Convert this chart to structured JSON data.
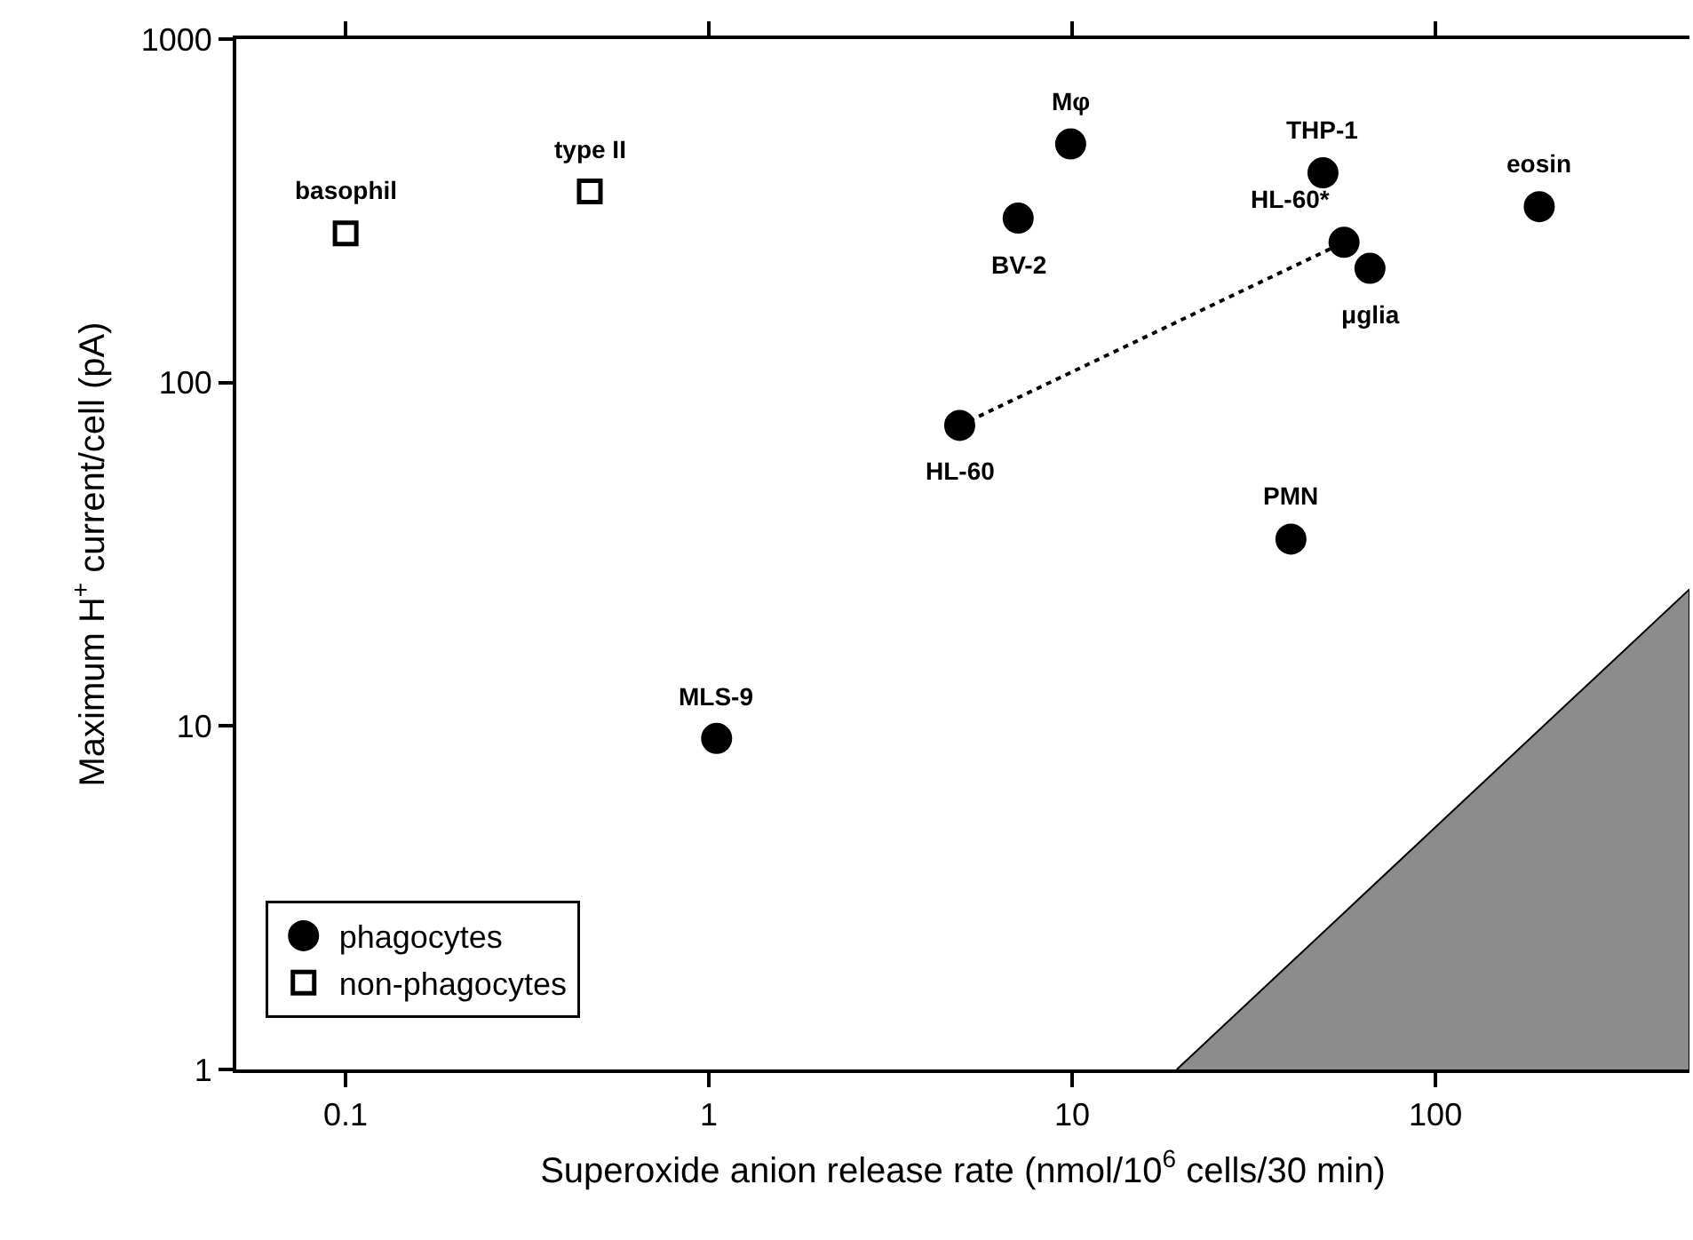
{
  "chart_data": {
    "type": "scatter",
    "xlabel": "Superoxide anion release rate (nmol/10$^{6}$ cells/30 min)",
    "ylabel": "Maximum H$^{+}$ current/cell (pA)",
    "log": "xy",
    "xlim": [
      0.05,
      500
    ],
    "xticks": [
      0.1,
      1,
      10,
      100
    ],
    "ylim": [
      1,
      1000
    ],
    "yticks": [
      1,
      10,
      100,
      1000
    ],
    "legend": "bottom left",
    "series": [
      {
        "type": "area",
        "color": "#8c8c8c",
        "x": [
          19.4,
          500
        ],
        "values": [
          1,
          25
        ]
      },
      {
        "type": "line",
        "color": "#000000",
        "line_style": "dotted",
        "marker": "none",
        "x": [
          4.9,
          56
        ],
        "values": [
          75,
          256
        ]
      },
      {
        "name": "phagocytes",
        "marker": "circle",
        "color": "#000000",
        "x": [
          9.9,
          7.1,
          49,
          56,
          66,
          193,
          4.9,
          40,
          1.05
        ],
        "values": [
          495,
          301,
          408,
          256,
          215,
          325,
          75,
          35,
          9.2
        ]
      },
      {
        "name": "non-phagocytes",
        "marker": "square",
        "color": "#000000",
        "x": [
          0.1,
          0.47
        ],
        "values": [
          272,
          360
        ]
      }
    ],
    "annotations": [
      {
        "text": "basophil",
        "x": 0.1,
        "y": 272
      },
      {
        "text": "type II",
        "x": 0.47,
        "y": 360
      },
      {
        "text": "Mφ",
        "x": 9.9,
        "y": 495
      },
      {
        "text": "BV-2",
        "x": 7.1,
        "y": 301
      },
      {
        "text": "THP-1",
        "x": 49,
        "y": 408
      },
      {
        "text": "HL-60*",
        "x": 56,
        "y": 256
      },
      {
        "text": "μglia",
        "x": 66,
        "y": 215
      },
      {
        "text": "eosin",
        "x": 193,
        "y": 325
      },
      {
        "text": "HL-60",
        "x": 4.9,
        "y": 75
      },
      {
        "text": "PMN",
        "x": 40,
        "y": 35
      },
      {
        "text": "MLS-9",
        "x": 1.05,
        "y": 9.2
      }
    ]
  }
}
